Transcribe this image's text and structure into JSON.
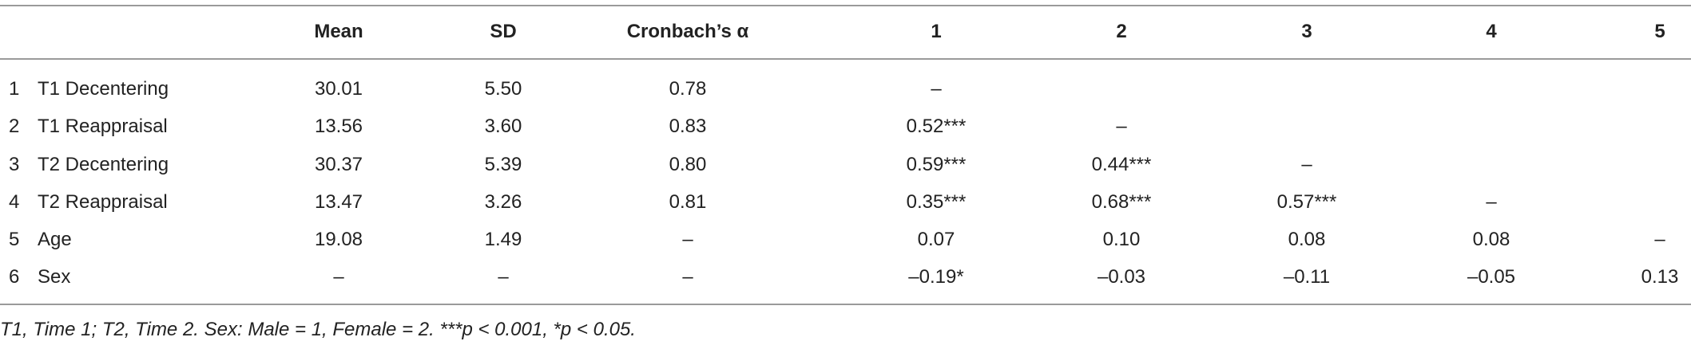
{
  "table": {
    "header": [
      "Mean",
      "SD",
      "Cronbach’s α",
      "1",
      "2",
      "3",
      "4",
      "5"
    ],
    "rows": [
      [
        "1",
        "T1 Decentering",
        "30.01",
        "5.50",
        "0.78",
        "–"
      ],
      [
        "2",
        "T1 Reappraisal",
        "13.56",
        "3.60",
        "0.83",
        "0.52***",
        "–"
      ],
      [
        "3",
        "T2 Decentering",
        "30.37",
        "5.39",
        "0.80",
        "0.59***",
        "0.44***",
        "–"
      ],
      [
        "4",
        "T2 Reappraisal",
        "13.47",
        "3.26",
        "0.81",
        "0.35***",
        "0.68***",
        "0.57***",
        "–"
      ],
      [
        "5",
        "Age",
        "19.08",
        "1.49",
        "–",
        "0.07",
        "0.10",
        "0.08",
        "0.08",
        "–"
      ],
      [
        "6",
        "Sex",
        "–",
        "–",
        "–",
        "–0.19*",
        "–0.03",
        "–0.11",
        "–0.05",
        "0.13"
      ]
    ]
  },
  "footnote": "T1, Time 1; T2, Time 2. Sex: Male = 1, Female = 2. ***p < 0.001, *p < 0.05."
}
